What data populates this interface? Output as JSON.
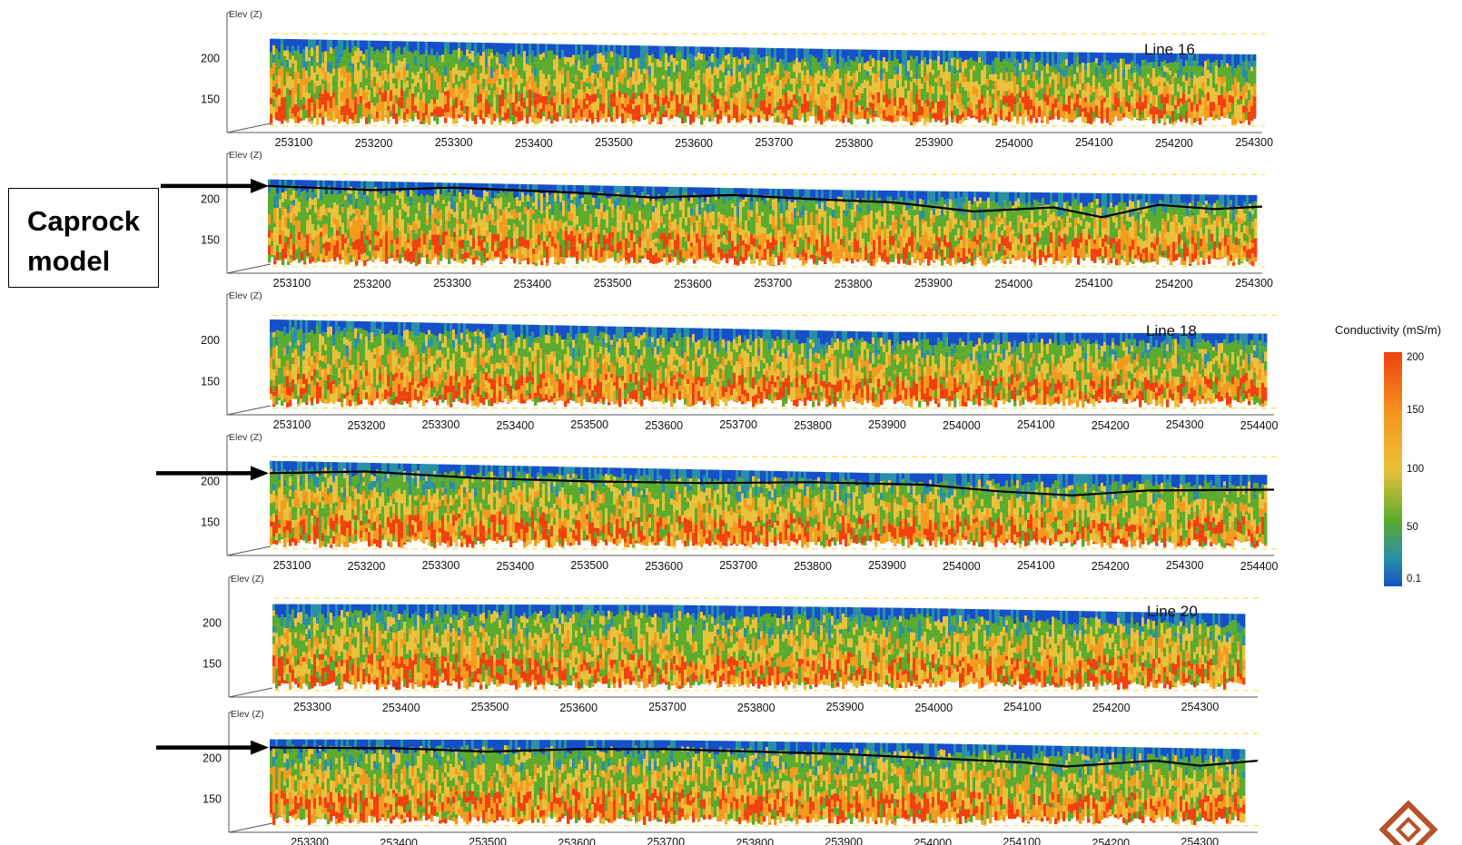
{
  "caprock_label": "Caprock\nmodel",
  "colors": {
    "blue": "#1550c8",
    "teal": "#2a8fa6",
    "green": "#5aab2e",
    "yellow": "#e9c13b",
    "orange": "#f49a1f",
    "red": "#f0410f",
    "caprock_line": "#000000",
    "reference_line": "#f2e66a"
  },
  "colorbar": {
    "title": "Conductivity (mS/m)",
    "ticks": [
      "200",
      "150",
      "100",
      "50",
      "0.1"
    ]
  },
  "chart_data": [
    {
      "type": "heatmap",
      "title": "Line 16",
      "ylabel": "Elev (Z)",
      "yticks": [
        "200",
        "150"
      ],
      "ylim": [
        110,
        260
      ],
      "xticks": [
        "253100",
        "253200",
        "253300",
        "253400",
        "253500",
        "253600",
        "253700",
        "253800",
        "253900",
        "254000",
        "254100",
        "254200",
        "254300"
      ],
      "xlim": [
        253070,
        254310
      ],
      "caprock": false,
      "top_elevation": [
        [
          253070,
          224
        ],
        [
          253400,
          218
        ],
        [
          253800,
          211
        ],
        [
          254300,
          205
        ]
      ]
    },
    {
      "type": "heatmap",
      "title": "",
      "ylabel": "Elev (Z)",
      "yticks": [
        "200",
        "150"
      ],
      "ylim": [
        110,
        260
      ],
      "xticks": [
        "253100",
        "253200",
        "253300",
        "253400",
        "253500",
        "253600",
        "253700",
        "253800",
        "253900",
        "254000",
        "254100",
        "254200",
        "254300"
      ],
      "xlim": [
        253070,
        254310
      ],
      "caprock": true,
      "top_elevation": [
        [
          253070,
          224
        ],
        [
          253400,
          218
        ],
        [
          253800,
          211
        ],
        [
          254300,
          205
        ]
      ],
      "caprock_line": [
        [
          253070,
          216
        ],
        [
          253200,
          211
        ],
        [
          253300,
          214
        ],
        [
          253450,
          208
        ],
        [
          253550,
          202
        ],
        [
          253650,
          205
        ],
        [
          253750,
          200
        ],
        [
          253850,
          196
        ],
        [
          253950,
          185
        ],
        [
          254050,
          190
        ],
        [
          254110,
          178
        ],
        [
          254180,
          193
        ],
        [
          254250,
          188
        ],
        [
          254310,
          191
        ]
      ]
    },
    {
      "type": "heatmap",
      "title": "Line 18",
      "ylabel": "Elev (Z)",
      "yticks": [
        "200",
        "150"
      ],
      "ylim": [
        110,
        260
      ],
      "xticks": [
        "253100",
        "253200",
        "253300",
        "253400",
        "253500",
        "253600",
        "253700",
        "253800",
        "253900",
        "254000",
        "254100",
        "254200",
        "254300",
        "254400"
      ],
      "xlim": [
        253070,
        254420
      ],
      "caprock": false,
      "top_elevation": [
        [
          253070,
          225
        ],
        [
          253400,
          219
        ],
        [
          253900,
          210
        ],
        [
          254420,
          208
        ]
      ]
    },
    {
      "type": "heatmap",
      "title": "",
      "ylabel": "Elev (Z)",
      "yticks": [
        "200",
        "150"
      ],
      "ylim": [
        110,
        260
      ],
      "xticks": [
        "253100",
        "253200",
        "253300",
        "253400",
        "253500",
        "253600",
        "253700",
        "253800",
        "253900",
        "254000",
        "254100",
        "254200",
        "254300",
        "254400"
      ],
      "xlim": [
        253070,
        254420
      ],
      "caprock": true,
      "top_elevation": [
        [
          253070,
          225
        ],
        [
          253400,
          219
        ],
        [
          253900,
          210
        ],
        [
          254420,
          208
        ]
      ],
      "caprock_line": [
        [
          253070,
          210
        ],
        [
          253200,
          212
        ],
        [
          253350,
          204
        ],
        [
          253500,
          200
        ],
        [
          253650,
          198
        ],
        [
          253800,
          199
        ],
        [
          253950,
          196
        ],
        [
          254050,
          188
        ],
        [
          254150,
          183
        ],
        [
          254250,
          189
        ],
        [
          254420,
          190
        ]
      ]
    },
    {
      "type": "heatmap",
      "title": "Line 20",
      "ylabel": "Elev (Z)",
      "yticks": [
        "200",
        "150"
      ],
      "ylim": [
        110,
        260
      ],
      "xticks": [
        "253300",
        "253400",
        "253500",
        "253600",
        "253700",
        "253800",
        "253900",
        "254000",
        "254100",
        "254200",
        "254300"
      ],
      "xlim": [
        253255,
        254365
      ],
      "caprock": false,
      "top_elevation": [
        [
          253255,
          223
        ],
        [
          253700,
          222
        ],
        [
          254000,
          218
        ],
        [
          254365,
          211
        ]
      ]
    },
    {
      "type": "heatmap",
      "title": "",
      "ylabel": "Elev (Z)",
      "yticks": [
        "200",
        "150"
      ],
      "ylim": [
        110,
        260
      ],
      "xticks": [
        "253300",
        "253400",
        "253500",
        "253600",
        "253700",
        "253800",
        "253900",
        "254000",
        "254100",
        "254200",
        "254300"
      ],
      "xlim": [
        253255,
        254365
      ],
      "caprock": true,
      "top_elevation": [
        [
          253255,
          223
        ],
        [
          253700,
          222
        ],
        [
          254000,
          218
        ],
        [
          254365,
          211
        ]
      ],
      "caprock_line": [
        [
          253255,
          213
        ],
        [
          253400,
          212
        ],
        [
          253500,
          208
        ],
        [
          253600,
          211
        ],
        [
          253700,
          211
        ],
        [
          253800,
          208
        ],
        [
          253900,
          205
        ],
        [
          254000,
          200
        ],
        [
          254100,
          195
        ],
        [
          254150,
          190
        ],
        [
          254250,
          197
        ],
        [
          254300,
          191
        ],
        [
          254365,
          197
        ]
      ]
    }
  ]
}
